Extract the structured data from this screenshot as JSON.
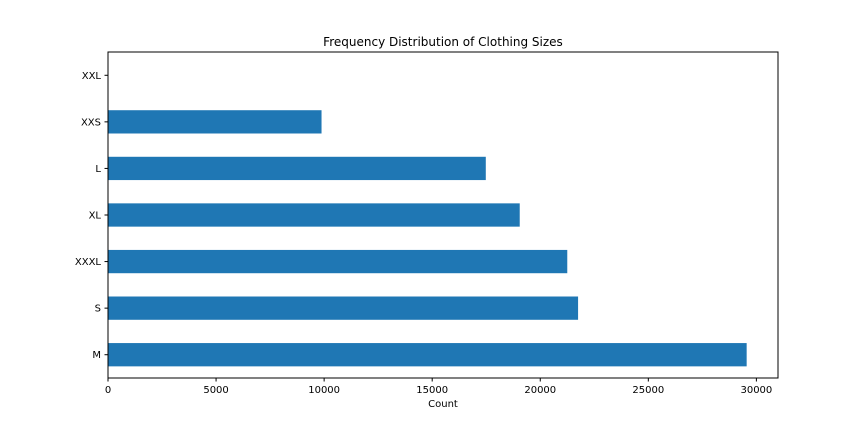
{
  "chart_data": {
    "type": "bar",
    "orientation": "horizontal",
    "title": "Frequency Distribution of Clothing Sizes",
    "xlabel": "Count",
    "ylabel": "",
    "categories": [
      "M",
      "S",
      "XXXL",
      "XL",
      "L",
      "XXS",
      "XXL"
    ],
    "values": [
      29550,
      21750,
      21250,
      19050,
      17480,
      9880,
      0
    ],
    "xlim": [
      0,
      31000
    ],
    "xticks": [
      0,
      5000,
      10000,
      15000,
      20000,
      25000,
      30000
    ],
    "xtick_labels": [
      "0",
      "5000",
      "10000",
      "15000",
      "20000",
      "25000",
      "30000"
    ],
    "bar_color": "#1f77b4",
    "grid": false,
    "legend": "none"
  }
}
